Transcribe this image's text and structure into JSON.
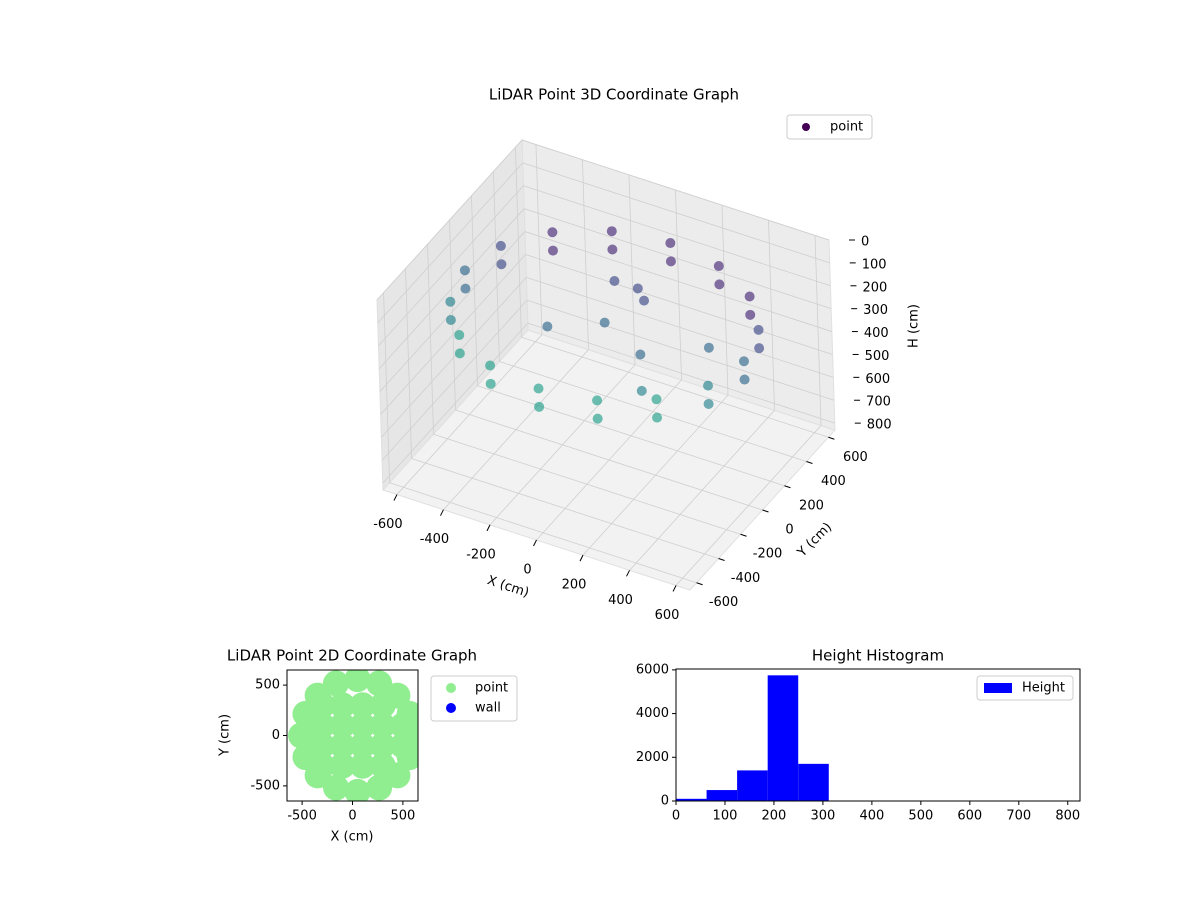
{
  "chart_data": [
    {
      "type": "scatter3d",
      "title": "LiDAR Point 3D Coordinate Graph",
      "xlabel": "X (cm)",
      "ylabel": "Y (cm)",
      "zlabel": "H (cm)",
      "xlim": [
        -660,
        660
      ],
      "ylim": [
        -660,
        660
      ],
      "zlim": [
        0,
        830
      ],
      "z_inverted": true,
      "xticks": [
        -600,
        -400,
        -200,
        0,
        200,
        400,
        600
      ],
      "yticks": [
        -600,
        -400,
        -200,
        0,
        200,
        400,
        600
      ],
      "zticks": [
        0,
        100,
        200,
        300,
        400,
        500,
        600,
        700,
        800
      ],
      "legend": "upper right",
      "grid": true,
      "colormap": [
        "#482878",
        "#3e4a89",
        "#31688e",
        "#26828e",
        "#1f9e89"
      ],
      "series": [
        {
          "name": "point",
          "color": "#440154",
          "x": [
            600,
            554,
            424,
            230,
            0,
            -230,
            -424,
            -554,
            -600,
            -554,
            -424,
            -230,
            0,
            230,
            424,
            554,
            600,
            554,
            424,
            230,
            0,
            -230,
            -424,
            -554,
            -600,
            -554,
            -424,
            -230,
            0,
            230,
            424,
            554,
            100,
            50,
            200,
            -200,
            300,
            -100,
            400,
            0
          ],
          "y": [
            0,
            230,
            424,
            554,
            600,
            554,
            424,
            230,
            0,
            -230,
            -424,
            -554,
            -600,
            -554,
            -424,
            -230,
            0,
            230,
            424,
            554,
            600,
            554,
            424,
            230,
            0,
            -230,
            -424,
            -554,
            -600,
            -554,
            -424,
            -230,
            150,
            200,
            -100,
            -100,
            -300,
            300,
            100,
            0
          ],
          "z": [
            200,
            200,
            200,
            200,
            200,
            200,
            200,
            200,
            200,
            200,
            200,
            200,
            200,
            200,
            200,
            200,
            280,
            280,
            280,
            280,
            280,
            280,
            280,
            280,
            280,
            280,
            280,
            280,
            280,
            280,
            280,
            280,
            180,
            170,
            250,
            260,
            270,
            240,
            260,
            230
          ]
        }
      ]
    },
    {
      "type": "scatter",
      "title": "LiDAR Point 2D Coordinate Graph",
      "xlabel": "X (cm)",
      "ylabel": "Y (cm)",
      "xlim": [
        -650,
        650
      ],
      "ylim": [
        -650,
        650
      ],
      "xticks": [
        -500,
        0,
        500
      ],
      "yticks": [
        -500,
        0,
        500
      ],
      "legend": "outside upper right",
      "series": [
        {
          "name": "point",
          "color": "#90ee90",
          "x": [
            -300,
            -300,
            -300,
            -300,
            -100,
            -100,
            -100,
            -100,
            100,
            100,
            100,
            100,
            300,
            300,
            300,
            300,
            500,
            500,
            610,
            567,
            446,
            264,
            50,
            -164,
            -346,
            -467,
            -510,
            -467,
            -346,
            -164,
            50,
            264,
            446,
            567
          ],
          "y": [
            -300,
            -100,
            100,
            300,
            -300,
            -100,
            100,
            300,
            -300,
            -100,
            100,
            300,
            -300,
            -100,
            100,
            300,
            -100,
            100,
            0,
            214,
            396,
            517,
            560,
            517,
            396,
            214,
            0,
            -214,
            -396,
            -517,
            -560,
            -517,
            -396,
            -214
          ]
        },
        {
          "name": "wall",
          "color": "#0000ff",
          "x": [],
          "y": []
        }
      ]
    },
    {
      "type": "histogram",
      "title": "Height Histogram",
      "bins": [
        0,
        62.4,
        124.8,
        187.2,
        249.6,
        312,
        374.4,
        436.8,
        499.2,
        561.6,
        624
      ],
      "series": [
        {
          "name": "Height",
          "color": "#0000ff",
          "values": [
            100,
            500,
            1400,
            5750,
            1700,
            0,
            0,
            0,
            0,
            0
          ]
        }
      ],
      "xlim": [
        0,
        825
      ],
      "ylim": [
        0,
        6040
      ],
      "xticks": [
        0,
        100,
        200,
        300,
        400,
        500,
        600,
        700,
        800
      ],
      "yticks": [
        0,
        2000,
        4000,
        6000
      ],
      "legend": "upper right"
    }
  ]
}
